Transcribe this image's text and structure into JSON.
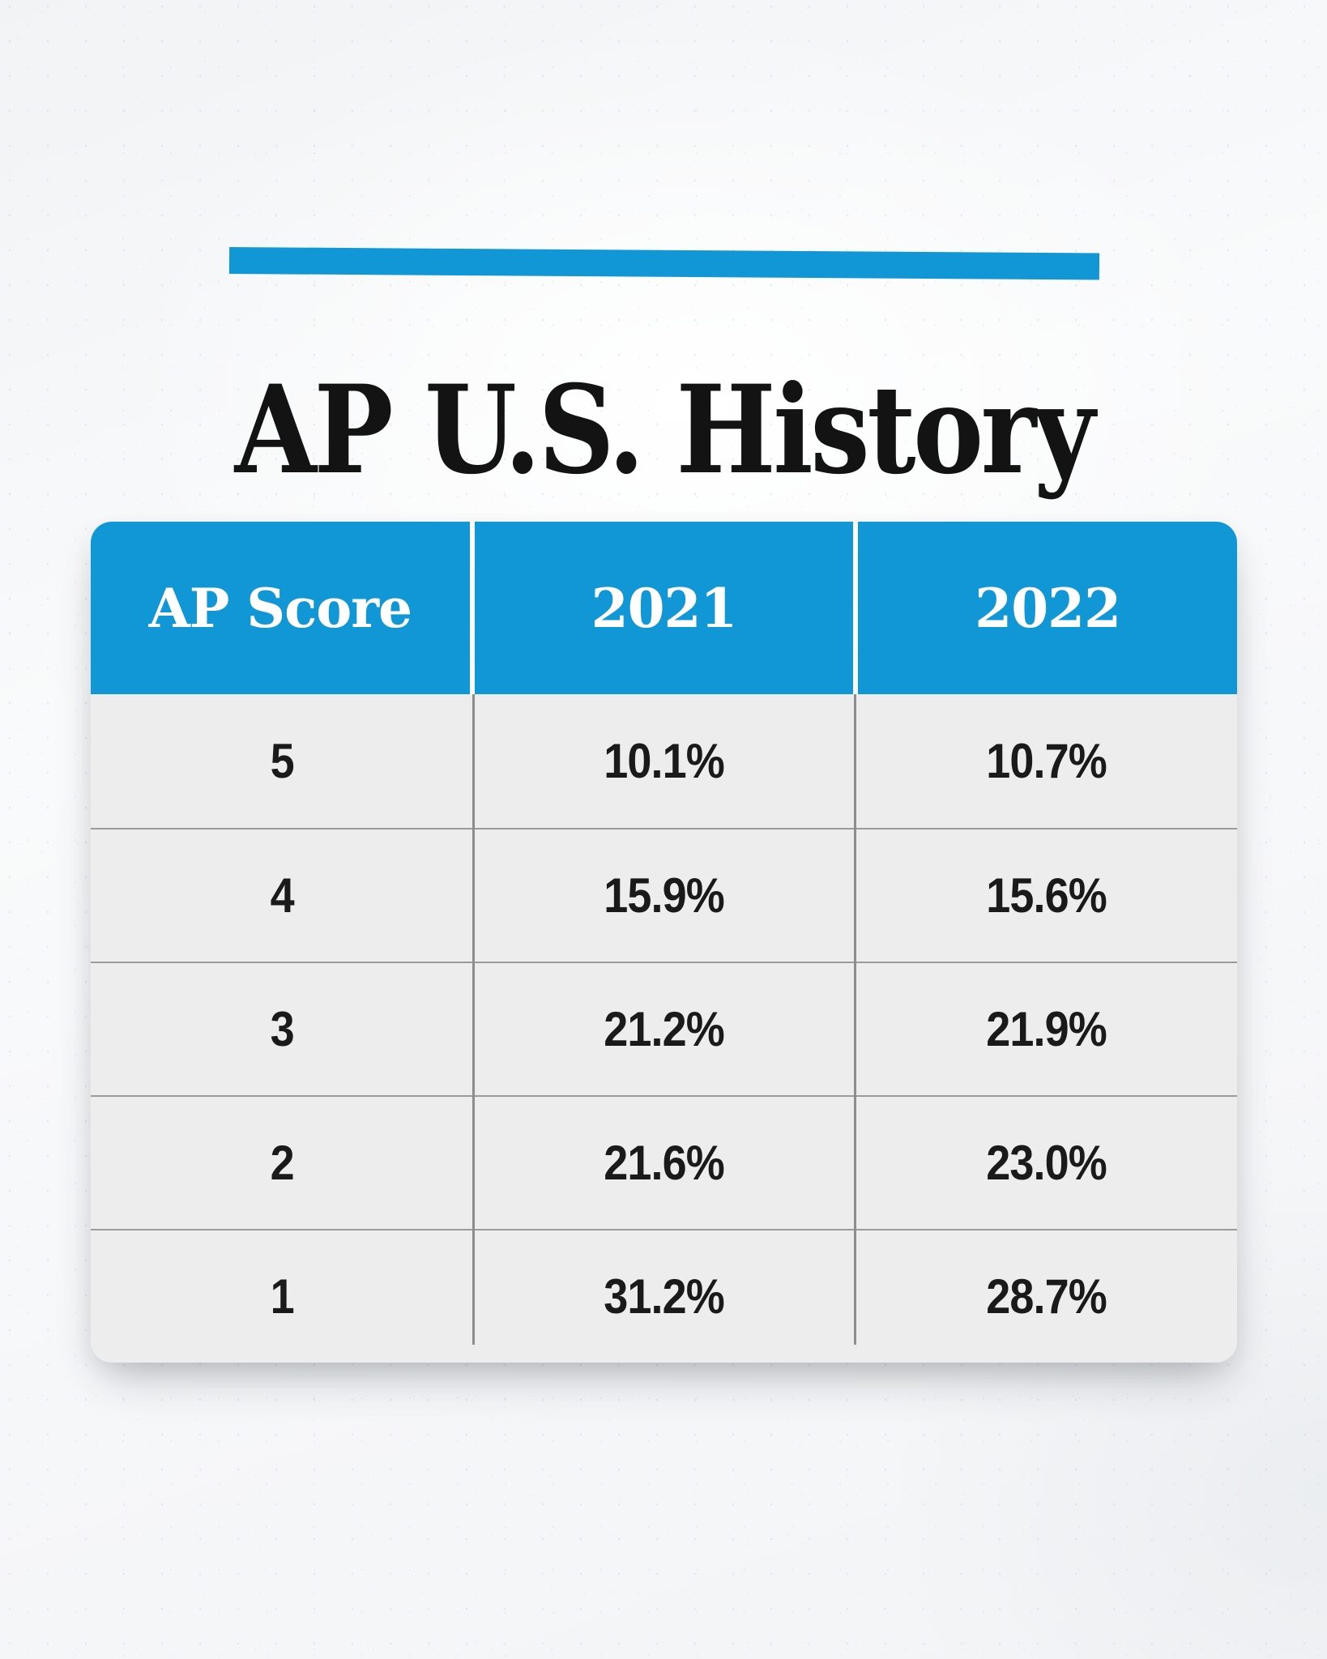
{
  "accent_color": "#1297d6",
  "header": {
    "title": "AP U.S. History"
  },
  "table": {
    "columns": [
      "AP Score",
      "2021",
      "2022"
    ],
    "rows": [
      [
        "5",
        "10.1%",
        "10.7%"
      ],
      [
        "4",
        "15.9%",
        "15.6%"
      ],
      [
        "3",
        "21.2%",
        "21.9%"
      ],
      [
        "2",
        "21.6%",
        "23.0%"
      ],
      [
        "1",
        "31.2%",
        "28.7%"
      ]
    ]
  },
  "chart_data": {
    "type": "table",
    "title": "AP U.S. History",
    "row_label": "AP Score",
    "categories": [
      "5",
      "4",
      "3",
      "2",
      "1"
    ],
    "series": [
      {
        "name": "2021",
        "values": [
          10.1,
          15.9,
          21.2,
          21.6,
          31.2
        ]
      },
      {
        "name": "2022",
        "values": [
          10.7,
          15.6,
          21.9,
          23.0,
          28.7
        ]
      }
    ],
    "units": "percent of test takers"
  }
}
